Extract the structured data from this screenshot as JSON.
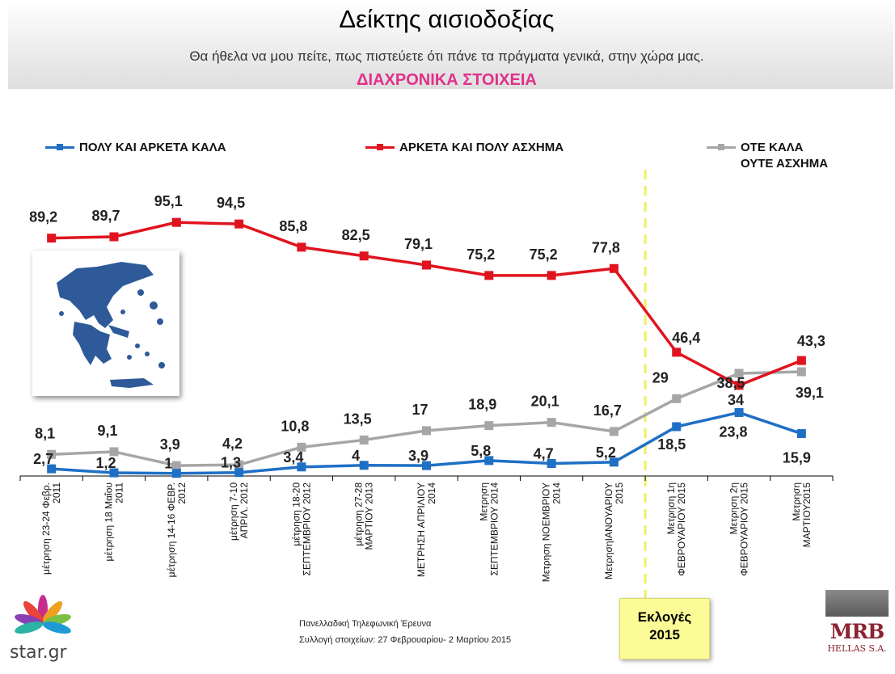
{
  "header": {
    "title": "Δείκτης αισιοδοξίας",
    "subtitle": "Θα ήθελα να μου πείτε, πως πιστεύετε ότι πάνε τα πράγματα γενικά, στην χώρα μας.",
    "subtitle2": "ΔΙΑΧΡΟΝΙΚΑ ΣΤΟΙΧΕΙΑ"
  },
  "legend": {
    "good": "ΠΟΛΥ ΚΑΙ ΑΡΚΕΤΑ ΚΑΛΑ",
    "bad": "ΑΡΚΕΤΑ ΚΑΙ ΠΟΛΥ ΑΣΧΗΜΑ",
    "neutral_line1": "ΟΤΕ ΚΑΛΑ",
    "neutral_line2": "ΟΥΤΕ ΑΣΧΗΜΑ"
  },
  "chart_data": {
    "type": "line",
    "title": "Δείκτης αισιοδοξίας",
    "categories": [
      [
        "μέτρηση 23-24 Φεβρ.",
        "2011"
      ],
      [
        "μέτρηση 18 Μαΐου",
        "2011"
      ],
      [
        "μέτρηση 14-16 ΦΕΒΡ.",
        "2012"
      ],
      [
        "μέτρηση 7-10",
        "ΑΠΡΙΛ. 2012"
      ],
      [
        "μέτρηση 18-20",
        "ΣΕΠΤΕΜΒΡΙΟΥ 2012"
      ],
      [
        "μέτρηση 27-28",
        "ΜΑΡΤΙΟΥ 2013"
      ],
      [
        "ΜΕΤΡΗΣΗ ΑΠΡΙΛΙΟΥ",
        "2014"
      ],
      [
        "Μετρηση",
        "ΣΕΠΤΕΜΒΡΙΟΥ 2014"
      ],
      [
        "Μετρηση ΝΟΕΜΒΡΙΟΥ",
        "2014"
      ],
      [
        "ΜετρησηΙΑΝΟΥΑΡΙΟΥ",
        "2015"
      ],
      [
        "Μετρηση 1η",
        "ΦΕΒΡΟΥΑΡΙΟΥ 2015"
      ],
      [
        "Μετρηση 2η",
        "ΦΕΒΡΟΥΑΡΙΟΥ 2015"
      ],
      [
        "Μετρηση",
        "ΜΑΡΤΙΟΥ2015"
      ]
    ],
    "series": [
      {
        "name": "ΑΡΚΕΤΑ ΚΑΙ ΠΟΛΥ ΑΣΧΗΜΑ",
        "color": "#e0141e",
        "values": [
          89.2,
          89.7,
          95.1,
          94.5,
          85.8,
          82.5,
          79.1,
          75.2,
          75.2,
          77.8,
          46.4,
          34,
          43.3
        ],
        "labels": [
          "89,2",
          "89,7",
          "95,1",
          "94,5",
          "85,8",
          "82,5",
          "79,1",
          "75,2",
          "75,2",
          "77,8",
          "46,4",
          "34",
          "43,3"
        ]
      },
      {
        "name": "ΟΤΕ ΚΑΛΑ ΟΥΤΕ ΑΣΧΗΜΑ",
        "color": "#a6a6a6",
        "values": [
          8.1,
          9.1,
          3.9,
          4.2,
          10.8,
          13.5,
          17,
          18.9,
          20.1,
          16.7,
          29,
          38.5,
          39.1
        ],
        "labels": [
          "8,1",
          "9,1",
          "3,9",
          "4,2",
          "10,8",
          "13,5",
          "17",
          "18,9",
          "20,1",
          "16,7",
          "29",
          "38,5",
          "39,1"
        ]
      },
      {
        "name": "ΠΟΛΥ ΚΑΙ ΑΡΚΕΤΑ ΚΑΛΑ",
        "color": "#1f6fc5",
        "values": [
          2.7,
          1.2,
          1,
          1.3,
          3.4,
          4,
          3.9,
          5.8,
          4.7,
          5.2,
          18.5,
          23.8,
          15.9
        ],
        "labels": [
          "2,7",
          "1,2",
          "1",
          "1,3",
          "3,4",
          "4",
          "3,9",
          "5,8",
          "4,7",
          "5,2",
          "18,5",
          "23,8",
          "15,9"
        ]
      }
    ],
    "ylim": [
      0,
      100
    ],
    "grid": false,
    "annotation": "Εκλογές 2015"
  },
  "footer": {
    "survey": "Πανελλαδική  Τηλεφωνική Έρευνα",
    "collection": "Συλλογή στοιχείων: 27 Φεβρουαρίου- 2 Μαρτίου  2015",
    "elections_line1": "Εκλογές",
    "elections_line2": "2015",
    "logo_star": "star.gr",
    "logo_mrb": "MRB",
    "logo_mrb_sub": "HELLAS S.A."
  },
  "colors": {
    "accent_pink": "#e0308a",
    "elections_box": "#fcfc96",
    "map_blue": "#2e5a99"
  }
}
